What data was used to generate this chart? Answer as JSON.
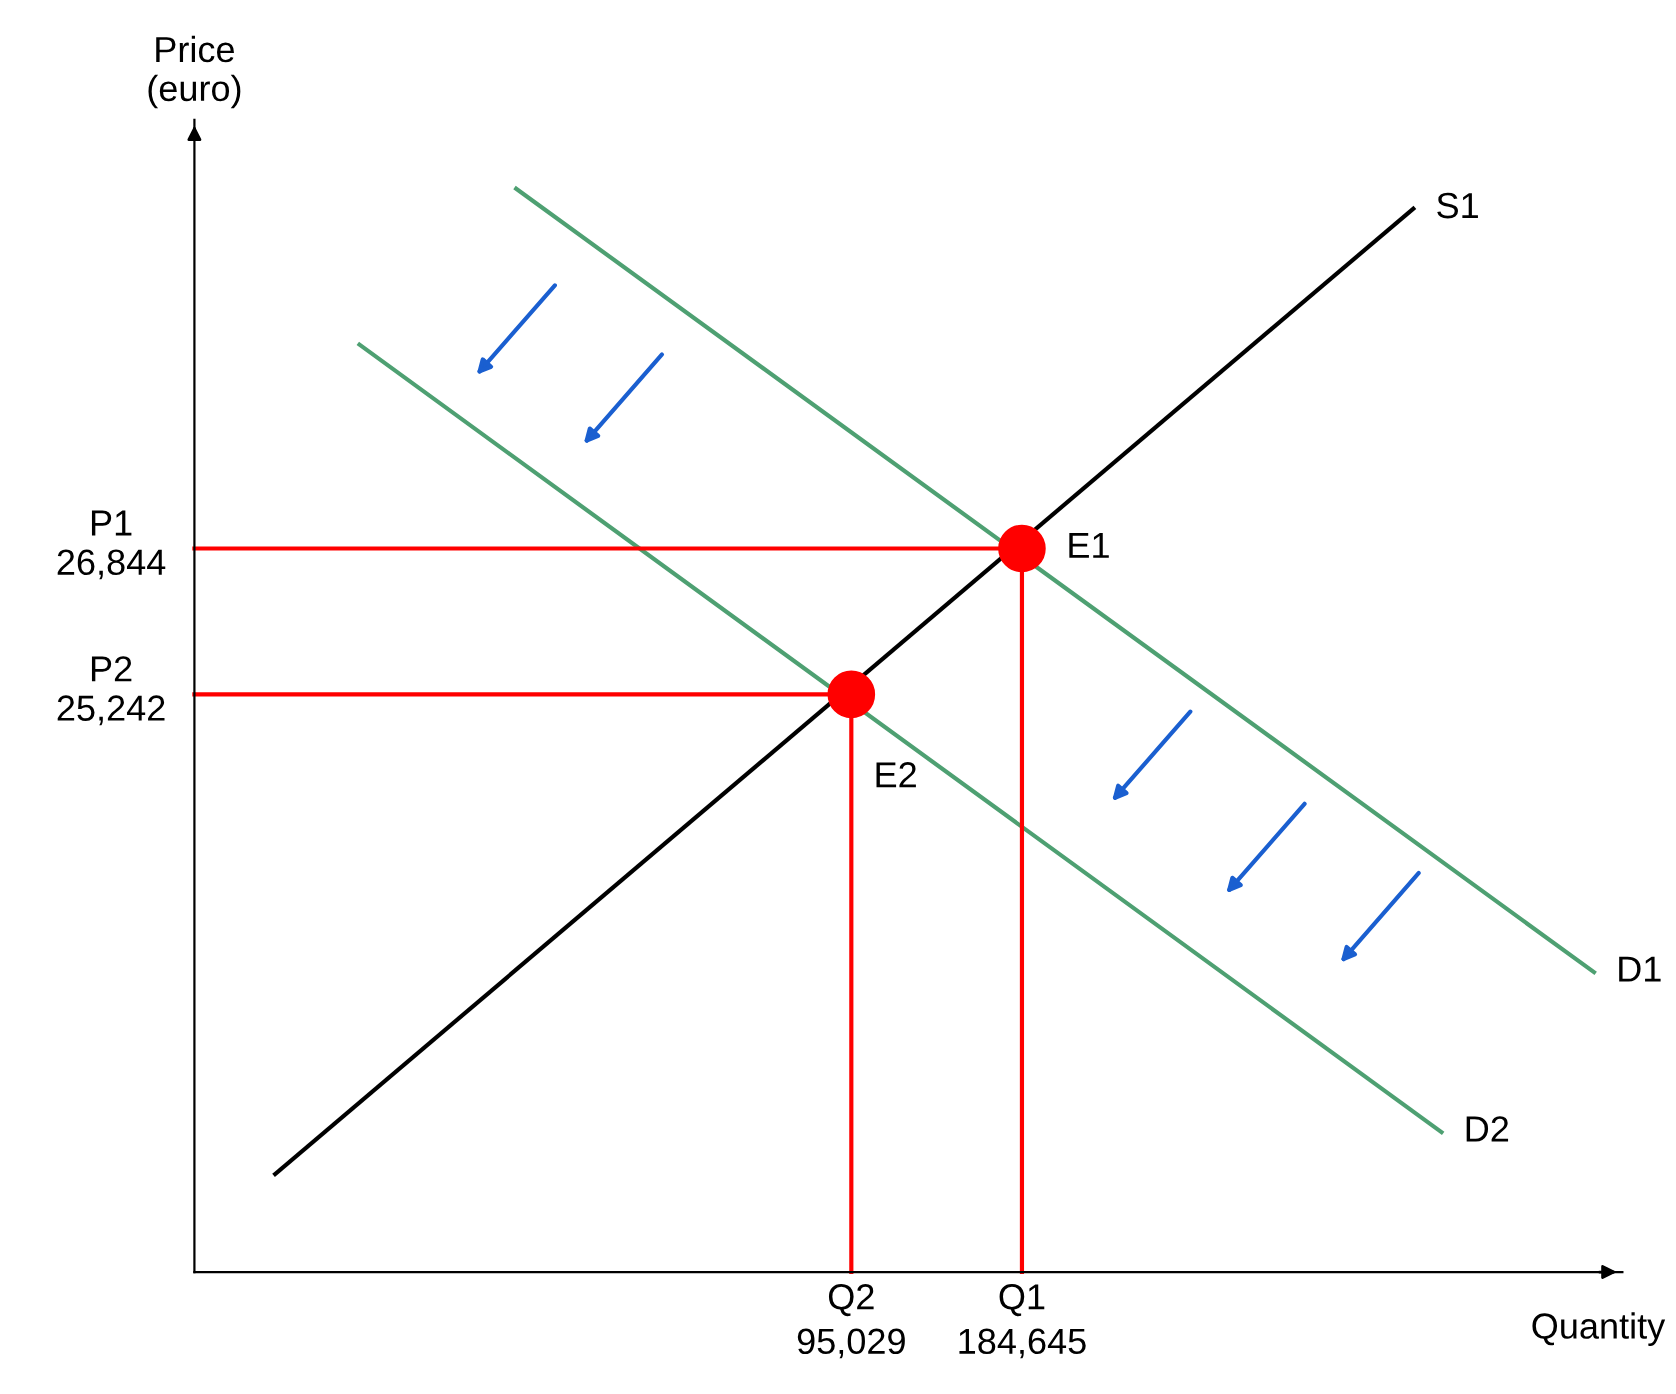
{
  "chart_data": {
    "type": "line",
    "xlabel": "Quantity",
    "ylabel": "Price\n(euro)",
    "xlim": [
      -250000,
      500000
    ],
    "ylim": [
      18900,
      31550
    ],
    "xticks": [
      {
        "value": 95029,
        "label": "95,029"
      },
      {
        "value": 184645,
        "label": "184,645"
      }
    ],
    "yticks": [
      {
        "value": 26844,
        "label": "26,844"
      },
      {
        "value": 25242,
        "label": "25,242"
      }
    ],
    "grid": false,
    "legend": false,
    "series": [
      {
        "name": "S1",
        "color": "#000000",
        "x": [
          -207600,
          390200
        ],
        "values": [
          19975,
          30575
        ]
      },
      {
        "name": "D1",
        "color": "#4ea072",
        "x": [
          -81000,
          485100
        ],
        "values": [
          30794,
          22192
        ]
      },
      {
        "name": "D2",
        "color": "#4ea072",
        "x": [
          -163300,
          405000
        ],
        "values": [
          29082,
          20436
        ]
      },
      {
        "color": "#ff0000",
        "x": [
          -250000,
          184645,
          184645
        ],
        "values": [
          26844,
          26844,
          18900
        ]
      },
      {
        "color": "#ff0000",
        "x": [
          -250000,
          95029,
          95029
        ],
        "values": [
          25242,
          25242,
          18900
        ]
      },
      {
        "type": "scatter",
        "marker": "circle",
        "color": "#ff0000",
        "x": [
          184645,
          95029
        ],
        "values": [
          26844,
          25242
        ]
      }
    ],
    "annotations": [
      {
        "text": "E1",
        "x": 184645,
        "y": 26844
      },
      {
        "text": "E2",
        "x": 95029,
        "y": 25242
      },
      {
        "text": "P1",
        "x": -250000,
        "y": 26844
      },
      {
        "text": "P2",
        "x": -250000,
        "y": 25242
      },
      {
        "text": "Q2",
        "x": 95029,
        "y": 18900
      },
      {
        "text": "Q1",
        "x": 184645,
        "y": 18900
      }
    ]
  }
}
